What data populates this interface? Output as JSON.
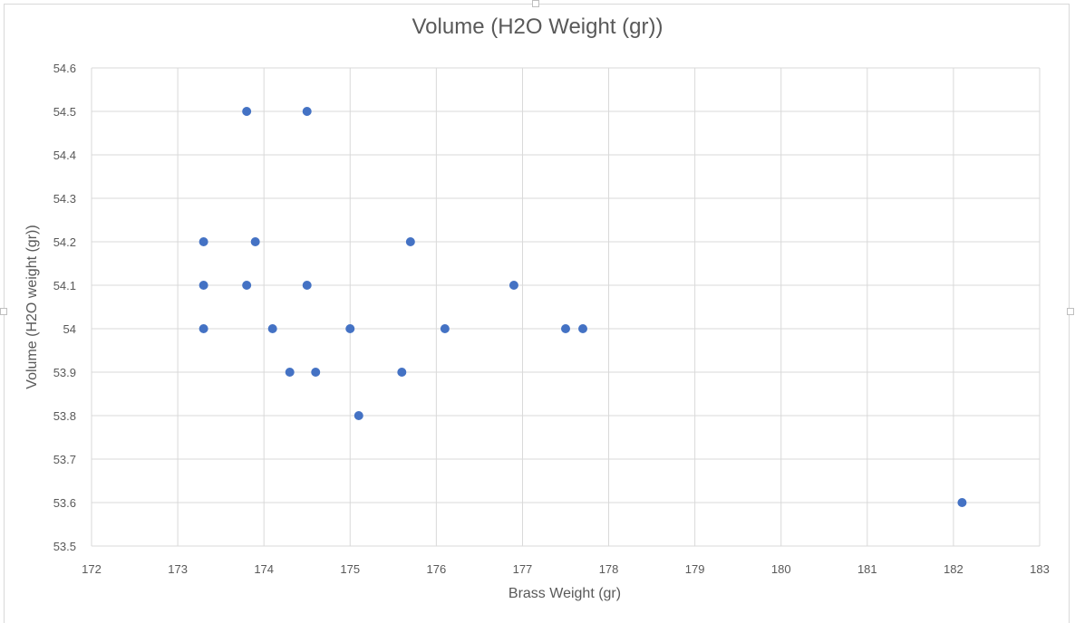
{
  "chart_data": {
    "type": "scatter",
    "title": "Volume (H2O Weight (gr))",
    "xlabel": "Brass Weight (gr)",
    "ylabel": "Volume (H2O weight (gr))",
    "xlim": [
      172,
      183
    ],
    "ylim": [
      53.5,
      54.6
    ],
    "x_ticks": [
      "172",
      "173",
      "174",
      "175",
      "176",
      "177",
      "178",
      "179",
      "180",
      "181",
      "182",
      "183"
    ],
    "y_ticks": [
      "53.5",
      "53.6",
      "53.7",
      "53.8",
      "53.9",
      "54",
      "54.1",
      "54.2",
      "54.3",
      "54.4",
      "54.5",
      "54.6"
    ],
    "grid": true,
    "legend": "none",
    "marker_color": "#4472C4",
    "points": [
      {
        "x": 173.8,
        "y": 54.5
      },
      {
        "x": 174.5,
        "y": 54.5
      },
      {
        "x": 173.3,
        "y": 54.2
      },
      {
        "x": 173.9,
        "y": 54.2
      },
      {
        "x": 175.7,
        "y": 54.2
      },
      {
        "x": 173.3,
        "y": 54.1
      },
      {
        "x": 173.8,
        "y": 54.1
      },
      {
        "x": 174.5,
        "y": 54.1
      },
      {
        "x": 176.9,
        "y": 54.1
      },
      {
        "x": 173.3,
        "y": 54.0
      },
      {
        "x": 174.1,
        "y": 54.0
      },
      {
        "x": 175.0,
        "y": 54.0
      },
      {
        "x": 176.1,
        "y": 54.0
      },
      {
        "x": 177.5,
        "y": 54.0
      },
      {
        "x": 177.7,
        "y": 54.0
      },
      {
        "x": 174.3,
        "y": 53.9
      },
      {
        "x": 174.6,
        "y": 53.9
      },
      {
        "x": 175.6,
        "y": 53.9
      },
      {
        "x": 175.1,
        "y": 53.8
      },
      {
        "x": 182.1,
        "y": 53.6
      }
    ]
  }
}
